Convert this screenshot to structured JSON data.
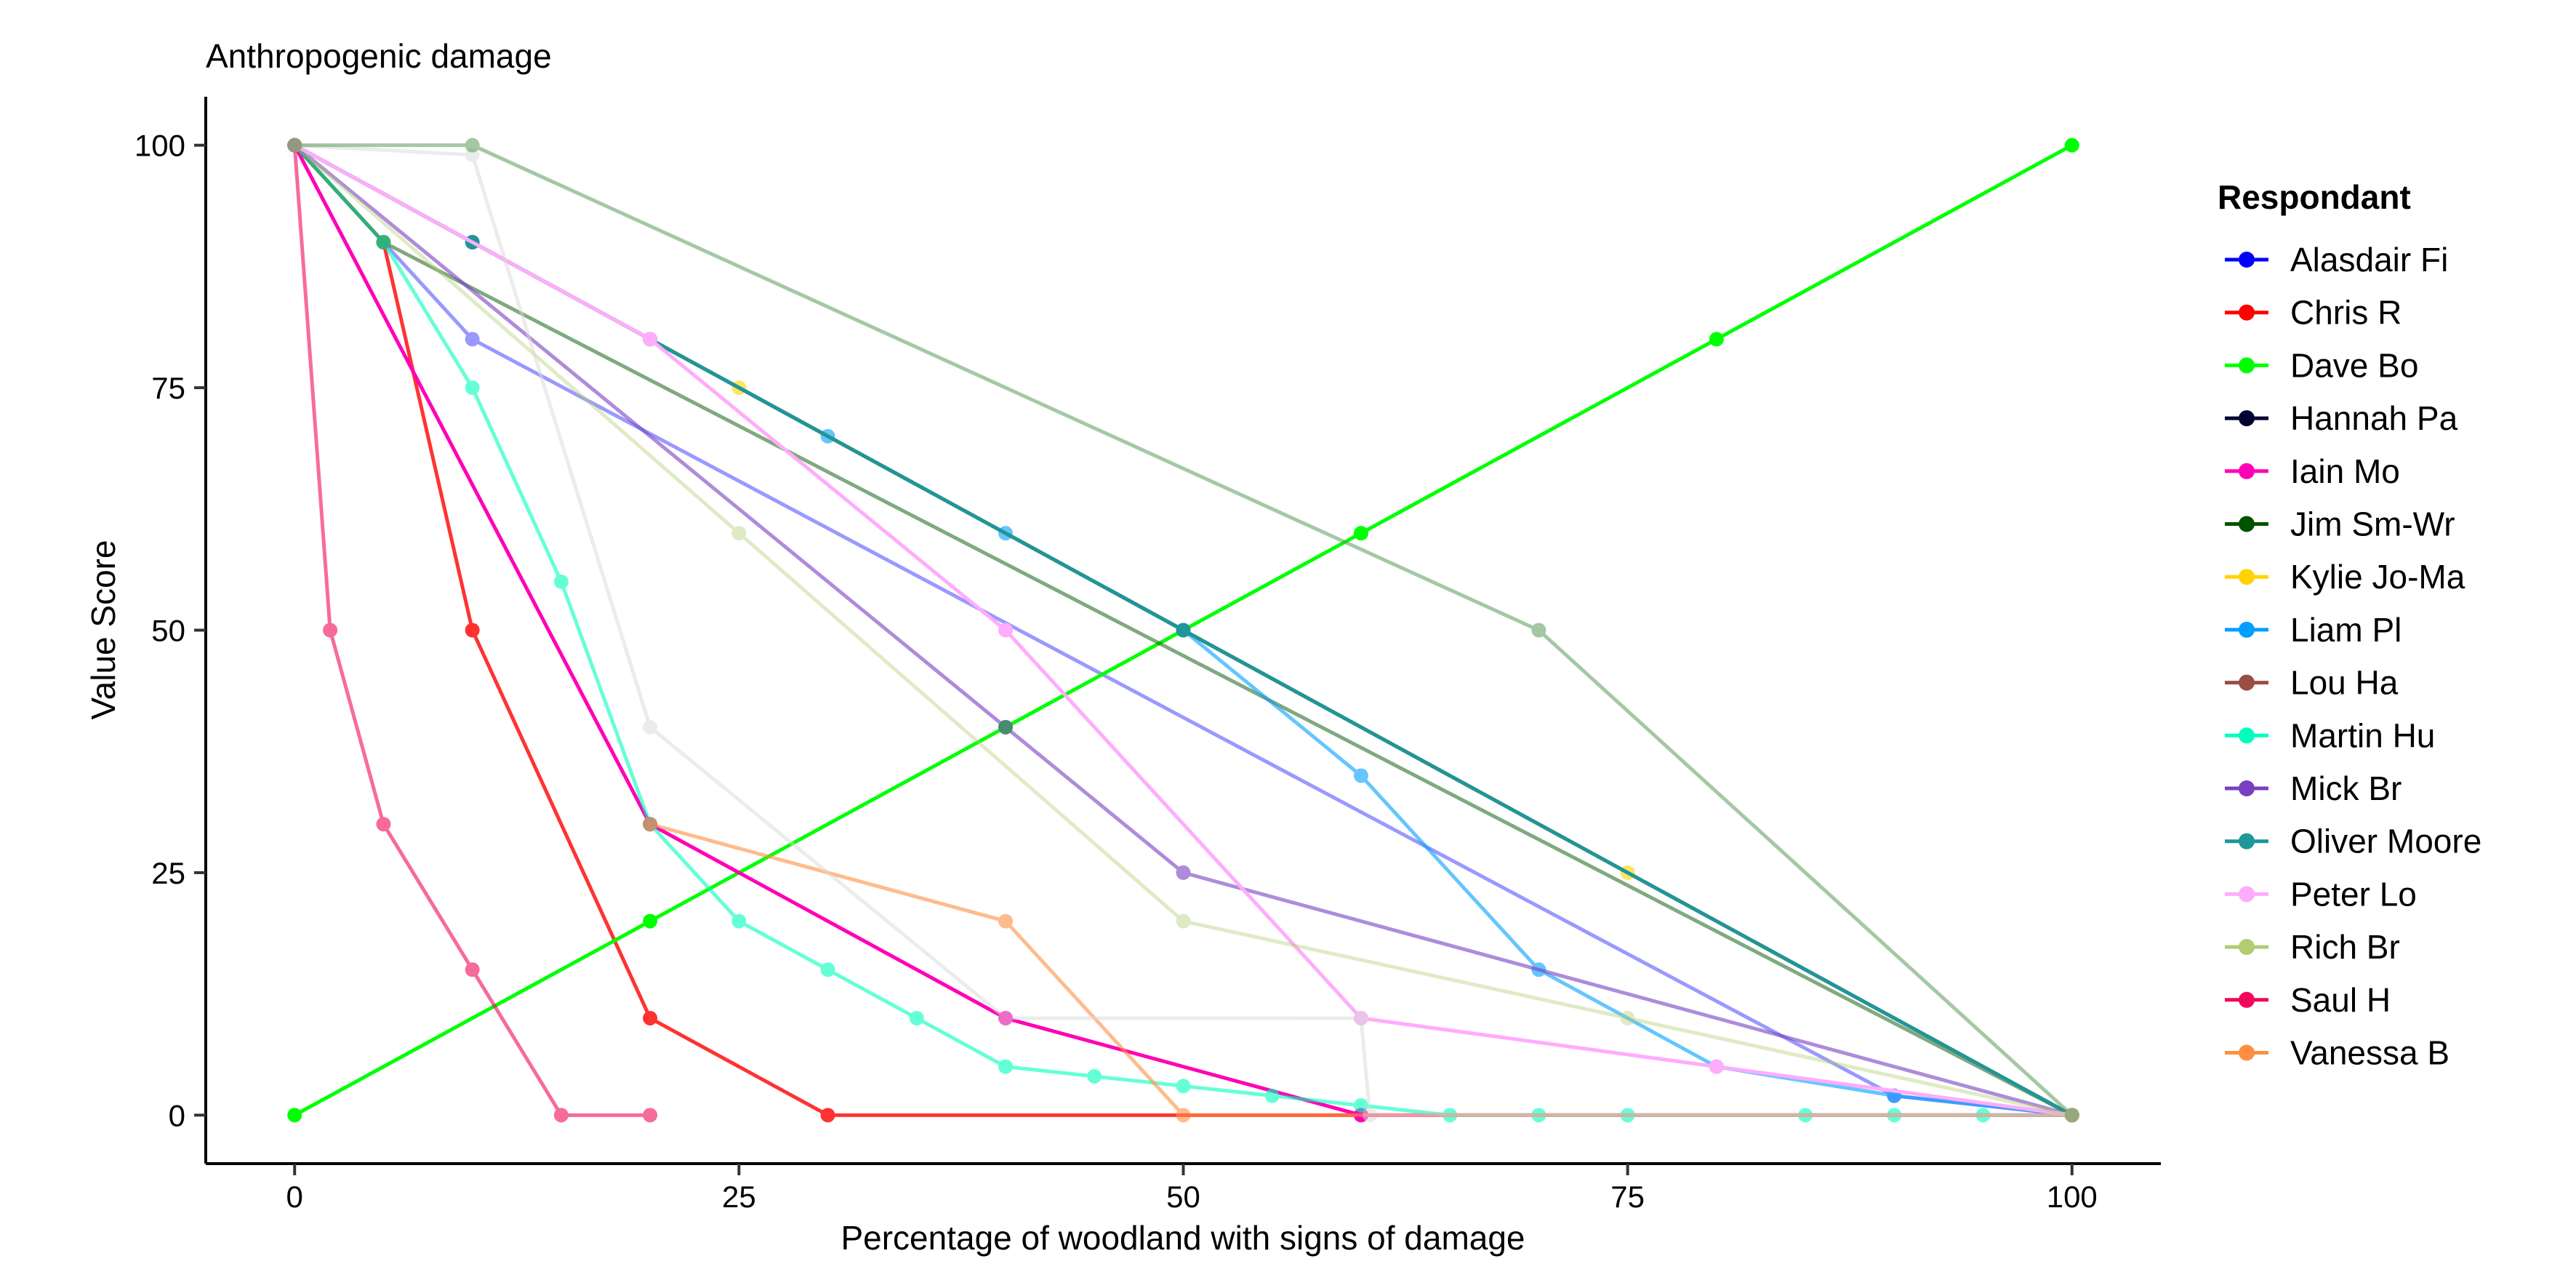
{
  "chart_data": {
    "type": "line",
    "title": "Anthropogenic damage",
    "xlabel": "Percentage of woodland with signs of damage",
    "ylabel": "Value Score",
    "xlim": [
      -10,
      210
    ],
    "ylim": [
      -5,
      105
    ],
    "xticks": [
      0,
      50,
      100,
      150,
      200
    ],
    "xtick_labels": [
      "0",
      "25",
      "50",
      "75",
      "100"
    ],
    "yticks": [
      0,
      25,
      50,
      75,
      100
    ],
    "ytick_labels": [
      "0",
      "25",
      "50",
      "75",
      "100"
    ],
    "grid": false,
    "legend_position": "right",
    "legend_title": "Respondant",
    "series": [
      {
        "name": "Alasdair Fi",
        "color": "#0000FF",
        "opacity": 0.4,
        "points": [
          [
            0,
            100
          ],
          [
            20,
            80
          ],
          [
            180,
            2
          ],
          [
            200,
            0
          ]
        ]
      },
      {
        "name": "Chris R",
        "color": "#FF0000",
        "opacity": 0.8,
        "points": [
          [
            0,
            100
          ],
          [
            10,
            90
          ],
          [
            20,
            50
          ],
          [
            40,
            10
          ],
          [
            60,
            0
          ],
          [
            200,
            0
          ]
        ]
      },
      {
        "name": "Dave Bo",
        "color": "#00FF00",
        "opacity": 1.0,
        "points": [
          [
            0,
            0
          ],
          [
            40,
            20
          ],
          [
            80,
            40
          ],
          [
            120,
            60
          ],
          [
            160,
            80
          ],
          [
            200,
            100
          ]
        ]
      },
      {
        "name": "Hannah Pa",
        "color": "#000033",
        "opacity": 0.4,
        "points": [
          [
            0,
            100
          ],
          [
            200,
            0
          ]
        ]
      },
      {
        "name": "Iain Mo",
        "color": "#FF00B6",
        "opacity": 1.0,
        "points": [
          [
            0,
            100
          ],
          [
            40,
            30
          ],
          [
            80,
            10
          ],
          [
            120,
            0
          ],
          [
            200,
            0
          ]
        ]
      },
      {
        "name": "Jim Sm-Wr",
        "color": "#005300",
        "opacity": 0.5,
        "points": [
          [
            0,
            100
          ],
          [
            10,
            90
          ],
          [
            200,
            0
          ]
        ]
      },
      {
        "name": "Kylie Jo-Ma",
        "color": "#FFD300",
        "opacity": 0.6,
        "points": [
          [
            0,
            100
          ],
          [
            50,
            75
          ],
          [
            150,
            25
          ],
          [
            200,
            0
          ]
        ]
      },
      {
        "name": "Liam Pl",
        "color": "#009FFF",
        "opacity": 0.6,
        "points": [
          [
            0,
            100
          ],
          [
            20,
            90
          ],
          [
            40,
            80
          ],
          [
            60,
            70
          ],
          [
            80,
            60
          ],
          [
            100,
            50
          ],
          [
            120,
            35
          ],
          [
            140,
            15
          ],
          [
            160,
            5
          ],
          [
            180,
            2
          ],
          [
            200,
            0
          ]
        ]
      },
      {
        "name": "Lou Ha",
        "color": "#9A4D42",
        "opacity": 0.9,
        "points": [
          [
            0,
            100
          ],
          [
            200,
            0
          ]
        ]
      },
      {
        "name": "Martin Hu",
        "color": "#00FFBE",
        "opacity": 0.6,
        "points": [
          [
            0,
            100
          ],
          [
            10,
            90
          ],
          [
            20,
            75
          ],
          [
            30,
            55
          ],
          [
            40,
            30
          ],
          [
            50,
            20
          ],
          [
            60,
            15
          ],
          [
            70,
            10
          ],
          [
            80,
            5
          ],
          [
            90,
            4
          ],
          [
            100,
            3
          ],
          [
            110,
            2
          ],
          [
            120,
            1
          ],
          [
            130,
            0
          ],
          [
            140,
            0
          ],
          [
            150,
            0
          ],
          [
            170,
            0
          ],
          [
            180,
            0
          ],
          [
            190,
            0
          ],
          [
            200,
            0
          ]
        ]
      },
      {
        "name": "Mick Br",
        "color": "#783FC1",
        "opacity": 0.6,
        "points": [
          [
            0,
            100
          ],
          [
            80,
            40
          ],
          [
            100,
            25
          ],
          [
            200,
            0
          ]
        ]
      },
      {
        "name": "Oliver Moore",
        "color": "#1F9698",
        "opacity": 1.0,
        "points": [
          [
            0,
            100
          ],
          [
            20,
            90
          ],
          [
            40,
            80
          ],
          [
            100,
            50
          ],
          [
            200,
            0
          ]
        ]
      },
      {
        "name": "Peter Lo",
        "color": "#FFACFD",
        "opacity": 1.0,
        "points": [
          [
            0,
            100
          ],
          [
            40,
            80
          ],
          [
            80,
            50
          ],
          [
            120,
            10
          ],
          [
            160,
            5
          ],
          [
            200,
            0
          ]
        ]
      },
      {
        "name": "Rich Br",
        "color": "#B1CC71",
        "opacity": 0.4,
        "points": [
          [
            0,
            100
          ],
          [
            50,
            60
          ],
          [
            100,
            20
          ],
          [
            150,
            10
          ],
          [
            200,
            0
          ]
        ]
      },
      {
        "name": "Saul H",
        "color": "#F1085C",
        "opacity": 0.6,
        "points": [
          [
            0,
            100
          ],
          [
            4,
            50
          ],
          [
            10,
            30
          ],
          [
            20,
            15
          ],
          [
            30,
            0
          ],
          [
            40,
            0
          ]
        ]
      },
      {
        "name": "Vanessa B",
        "color": "#FE8F42",
        "opacity": 0.6,
        "points": [
          [
            40,
            30
          ],
          [
            80,
            20
          ],
          [
            100,
            0
          ],
          [
            200,
            0
          ]
        ]
      },
      {
        "name": "",
        "color": "#D9D9D9",
        "opacity": 0.5,
        "points": [
          [
            0,
            100
          ],
          [
            20,
            99
          ],
          [
            40,
            40
          ],
          [
            80,
            10
          ],
          [
            120,
            10
          ],
          [
            121,
            0
          ],
          [
            200,
            0
          ]
        ]
      },
      {
        "name": "",
        "color": "#5A9B5A",
        "opacity": 0.55,
        "points": [
          [
            0,
            100
          ],
          [
            20,
            100
          ],
          [
            140,
            50
          ],
          [
            200,
            0
          ]
        ]
      }
    ]
  }
}
